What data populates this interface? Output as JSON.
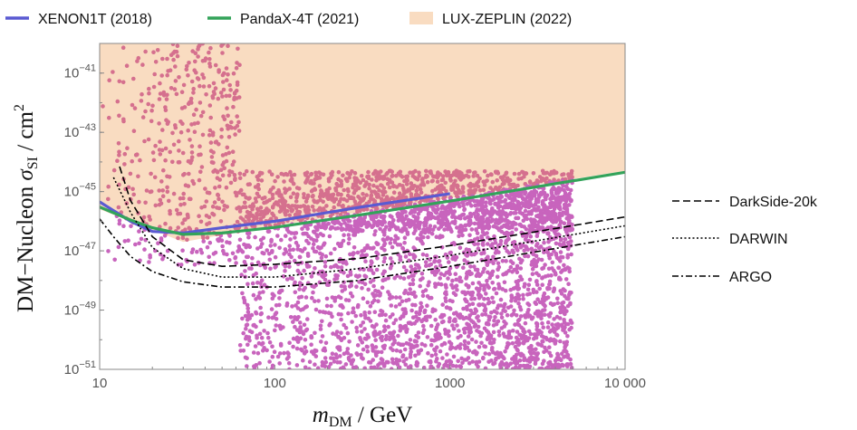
{
  "chart_data": {
    "type": "scatter",
    "title": "",
    "xlabel": "m_DM / GeV",
    "ylabel": "DM−Nucleon σ_SI / cm²",
    "xlabel_parts": {
      "main": "m",
      "sub": "DM",
      "rest": " / GeV"
    },
    "ylabel_parts": {
      "pre": "DM−Nucleon ",
      "sym": "σ",
      "sub": "SI",
      "rest": " / cm",
      "sup": "2"
    },
    "x_scale": "log",
    "y_scale": "log",
    "xlim": [
      10,
      10000
    ],
    "ylim": [
      1e-51,
      1e-40
    ],
    "x_ticks": [
      {
        "value": 10,
        "label": "10"
      },
      {
        "value": 100,
        "label": "100"
      },
      {
        "value": 1000,
        "label": "1000"
      },
      {
        "value": 10000,
        "label": "10 000"
      }
    ],
    "y_ticks": [
      {
        "value": 1e-41,
        "base": "10",
        "exp": "−41"
      },
      {
        "value": 1e-43,
        "base": "10",
        "exp": "−43"
      },
      {
        "value": 1e-45,
        "base": "10",
        "exp": "−45"
      },
      {
        "value": 1e-47,
        "base": "10",
        "exp": "−47"
      },
      {
        "value": 1e-49,
        "base": "10",
        "exp": "−49"
      },
      {
        "value": 1e-51,
        "base": "10",
        "exp": "−51"
      }
    ],
    "grid": false,
    "legend_top": [
      {
        "name": "XENON1T (2018)",
        "color": "#5a5ad2",
        "style": "solid"
      },
      {
        "name": "PandaX-4T (2021)",
        "color": "#33a35a",
        "style": "solid"
      },
      {
        "name": "LUX-ZEPLIN (2022)",
        "color": "#f9dcc1",
        "style": "band"
      }
    ],
    "legend_right": [
      {
        "name": "DarkSide-20k",
        "dash": "8,4"
      },
      {
        "name": "DARWIN",
        "dash": "2,2.5"
      },
      {
        "name": "ARGO",
        "dash": "7,3,2,3"
      }
    ],
    "lz_excluded_region": {
      "color": "#f9dcc1",
      "x": [
        10,
        30,
        100,
        1000,
        10000
      ],
      "y_lower": [
        2.5e-46,
        2e-47,
        7e-47,
        6e-46,
        5e-45
      ]
    },
    "series": [
      {
        "name": "XENON1T (2018)",
        "color": "#5a5ad2",
        "x": [
          10,
          15,
          20,
          30,
          50,
          100,
          300,
          1000
        ],
        "y": [
          4.5e-46,
          1e-46,
          4.5e-47,
          4e-47,
          6e-47,
          1e-46,
          2.9e-46,
          8.5e-46
        ]
      },
      {
        "name": "PandaX-4T (2021)",
        "color": "#33a35a",
        "x": [
          10,
          15,
          20,
          30,
          50,
          100,
          300,
          1000,
          3000,
          10000
        ],
        "y": [
          3e-46,
          1.1e-46,
          6e-47,
          3.6e-47,
          4e-47,
          6.2e-47,
          1.6e-46,
          4.8e-46,
          1.4e-45,
          4.5e-45
        ]
      },
      {
        "name": "DarkSide-20k",
        "color": "#000000",
        "x": [
          13,
          15,
          20,
          30,
          50,
          100,
          300,
          1000,
          3000,
          10000
        ],
        "y": [
          7e-45,
          5e-46,
          3e-47,
          5e-48,
          3e-48,
          3.5e-48,
          5.5e-48,
          1.5e-47,
          4.3e-47,
          1.4e-46
        ]
      },
      {
        "name": "DARWIN",
        "color": "#000000",
        "x": [
          12,
          15,
          20,
          30,
          50,
          100,
          300,
          1000,
          3000,
          10000
        ],
        "y": [
          3e-45,
          2e-46,
          1.3e-47,
          2.5e-48,
          1.3e-48,
          1.3e-48,
          2.5e-48,
          7e-48,
          2.1e-47,
          7e-47
        ]
      },
      {
        "name": "ARGO",
        "color": "#000000",
        "x": [
          10,
          12,
          15,
          20,
          30,
          50,
          100,
          300,
          1000,
          3000,
          10000
        ],
        "y": [
          1.2e-46,
          3e-47,
          6.5e-48,
          2e-48,
          9e-49,
          6e-49,
          6e-49,
          1e-48,
          3e-48,
          9e-48,
          3e-47
        ]
      }
    ],
    "scatter_points": {
      "name": "model points",
      "color_excluded": "#d5708e",
      "color_allowed": "#c864bd",
      "marker": "filled circle",
      "x_range": [
        10,
        5000
      ],
      "y_range": [
        1e-51,
        1e-40
      ],
      "note_density": "dense cloud; a few thousand points"
    }
  }
}
